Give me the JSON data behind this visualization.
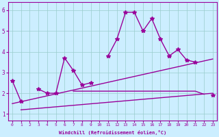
{
  "x": [
    0,
    1,
    2,
    3,
    4,
    5,
    6,
    7,
    8,
    9,
    10,
    11,
    12,
    13,
    14,
    15,
    16,
    17,
    18,
    19,
    20,
    21,
    22,
    23
  ],
  "y_main": [
    2.6,
    1.6,
    null,
    2.2,
    2.0,
    2.0,
    3.7,
    3.1,
    2.4,
    2.5,
    null,
    3.8,
    4.6,
    5.9,
    5.9,
    5.0,
    5.6,
    4.6,
    3.8,
    4.1,
    3.6,
    3.5,
    null,
    1.9
  ],
  "y_flat": [
    null,
    null,
    null,
    null,
    null,
    null,
    null,
    2.1,
    2.1,
    2.1,
    2.1,
    2.1,
    2.1,
    2.1,
    2.1,
    2.1,
    2.1,
    2.1,
    2.1,
    2.1,
    2.1,
    2.1,
    1.95,
    null
  ],
  "y_lin1_start": 1.2,
  "y_lin1_end": 2.0,
  "x_lin1_start": 1,
  "x_lin1_end": 23,
  "y_lin2_start": 1.5,
  "y_lin2_end": 3.65,
  "x_lin2_start": 0,
  "x_lin2_end": 23,
  "bg_color": "#cceeff",
  "line_color": "#990099",
  "grid_color": "#99cccc",
  "xlabel": "Windchill (Refroidissement éolien,°C)",
  "ylim": [
    0.7,
    6.4
  ],
  "xlim": [
    -0.5,
    23.5
  ],
  "xticks": [
    0,
    1,
    2,
    3,
    4,
    5,
    6,
    7,
    8,
    9,
    10,
    11,
    12,
    13,
    14,
    15,
    16,
    17,
    18,
    19,
    20,
    21,
    22,
    23
  ],
  "yticks": [
    1,
    2,
    3,
    4,
    5,
    6
  ]
}
